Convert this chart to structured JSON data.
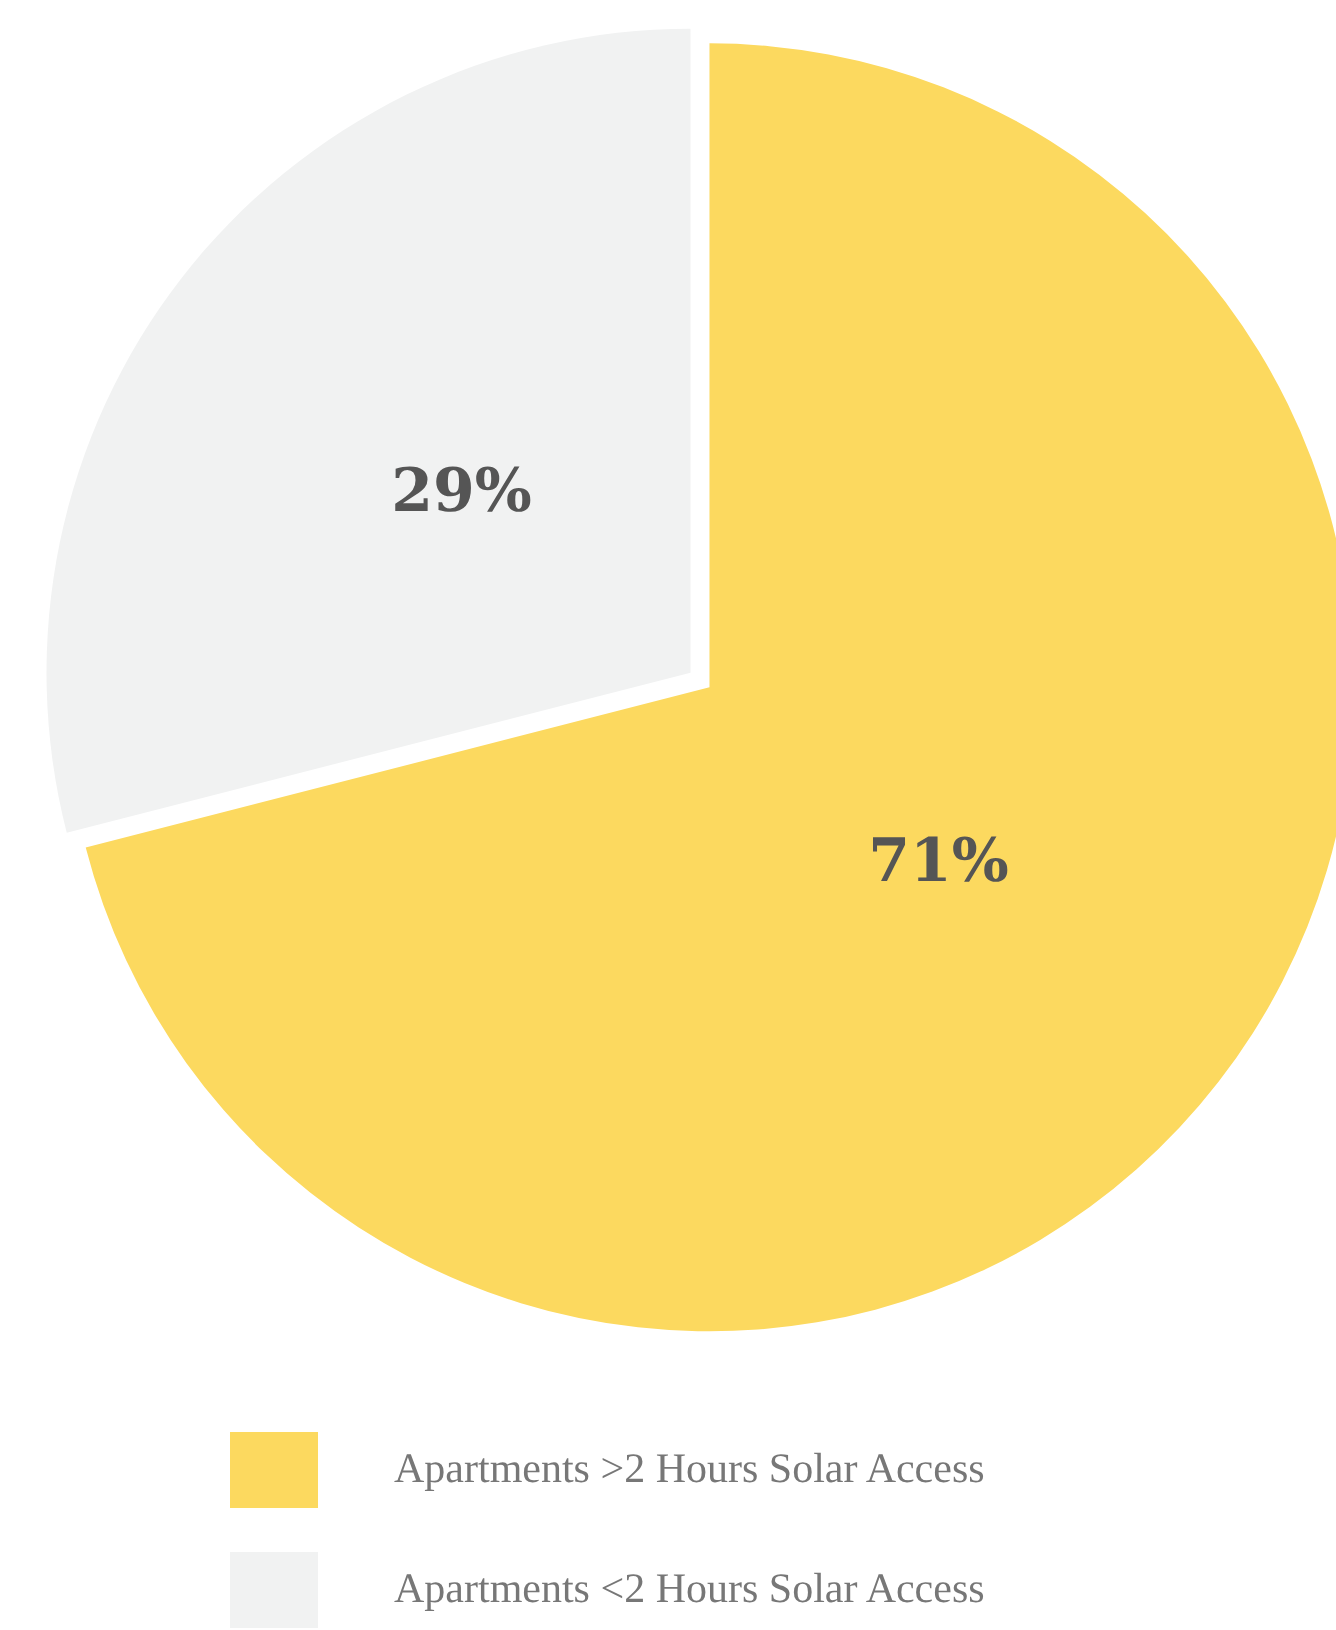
{
  "chart_data": {
    "type": "pie",
    "categories": [
      "Apartments >2 Hours Solar Access",
      "Apartments <2 Hours Solar Access"
    ],
    "values": [
      71,
      29
    ],
    "colors": [
      "#fcd95f",
      "#f1f2f2"
    ],
    "value_labels": [
      "71%",
      "29%"
    ],
    "legend": "bottom"
  }
}
